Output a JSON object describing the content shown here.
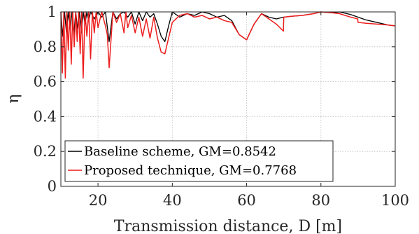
{
  "chart_data": {
    "type": "line",
    "title": "",
    "xlabel": "Transmission distance, D [m]",
    "ylabel": "η",
    "xlim": [
      10,
      100
    ],
    "ylim": [
      0,
      1
    ],
    "xticks": [
      20,
      40,
      60,
      80,
      100
    ],
    "yticks": [
      0,
      0.2,
      0.4,
      0.6,
      0.8,
      1
    ],
    "xtick_labels": [
      "20",
      "40",
      "60",
      "80",
      "100"
    ],
    "ytick_labels": [
      "0",
      "0.2",
      "0.4",
      "0.6",
      "0.8",
      "1"
    ],
    "grid": true,
    "legend_position": "bottom-left",
    "series": [
      {
        "name": "Baseline scheme, GM=0.8542",
        "color": "#000000",
        "x": [
          10,
          10.5,
          11,
          11.5,
          12,
          12.5,
          13,
          13.5,
          14,
          14.5,
          15,
          15.5,
          16,
          16.5,
          17,
          17.5,
          18,
          19,
          20,
          21,
          22,
          23,
          24,
          25,
          26,
          27,
          28,
          29,
          30,
          31,
          32,
          33,
          34,
          35,
          36,
          37,
          38,
          39,
          40,
          42,
          44,
          46,
          48,
          50,
          52,
          54,
          56,
          58,
          60,
          62,
          64,
          66,
          68,
          69.9,
          70,
          72,
          75,
          78,
          80,
          83,
          85,
          88,
          90,
          92,
          95,
          98,
          100
        ],
        "y": [
          1,
          0.86,
          1,
          0.88,
          1,
          0.9,
          1,
          0.87,
          1,
          0.9,
          1,
          0.88,
          1,
          0.93,
          1,
          0.95,
          1,
          0.96,
          1,
          0.97,
          1,
          0.83,
          1,
          0.96,
          0.99,
          1,
          0.97,
          1,
          0.93,
          1,
          0.95,
          1,
          0.97,
          0.99,
          0.93,
          0.86,
          0.83,
          0.92,
          1,
          0.97,
          0.99,
          0.98,
          1,
          0.99,
          0.97,
          0.98,
          0.95,
          0.87,
          0.84,
          0.93,
          0.99,
          0.97,
          0.96,
          0.97,
          0.97,
          0.975,
          0.98,
          0.99,
          1,
          0.995,
          1,
          0.985,
          0.97,
          0.955,
          0.94,
          0.925,
          0.92
        ]
      },
      {
        "name": "Proposed technique, GM=0.7768",
        "color": "#ee1c1c",
        "x": [
          10,
          10.4,
          10.8,
          11.2,
          11.6,
          12,
          12.4,
          12.8,
          13.2,
          13.6,
          14,
          14.4,
          14.8,
          15.2,
          15.6,
          16,
          16.5,
          17,
          17.5,
          18,
          18.5,
          19,
          19.5,
          20,
          21,
          22,
          22.5,
          23,
          23.5,
          24,
          25,
          26,
          27,
          27.5,
          28,
          29,
          30,
          31,
          32,
          33,
          34,
          35,
          36,
          37,
          38,
          39,
          40,
          42,
          44,
          46,
          48,
          50,
          52,
          54,
          56,
          58,
          60,
          62,
          64,
          66,
          68,
          69.9,
          70,
          72,
          75,
          78,
          80,
          83,
          85,
          88,
          89.9,
          90,
          92,
          95,
          98,
          100
        ],
        "y": [
          1,
          0.65,
          1,
          0.62,
          1,
          0.78,
          1,
          0.7,
          1,
          0.8,
          1,
          0.83,
          1,
          0.76,
          1,
          0.62,
          1,
          0.86,
          1,
          0.73,
          1,
          0.88,
          1,
          0.91,
          1,
          0.92,
          0.87,
          0.68,
          0.84,
          1,
          0.94,
          0.99,
          0.88,
          1,
          0.91,
          0.98,
          0.88,
          0.97,
          0.86,
          0.96,
          0.85,
          0.97,
          0.85,
          0.77,
          0.76,
          0.85,
          0.94,
          0.98,
          0.99,
          0.97,
          0.98,
          0.96,
          0.97,
          0.95,
          0.94,
          0.87,
          0.84,
          0.93,
          0.99,
          0.96,
          0.93,
          0.89,
          0.97,
          0.975,
          0.98,
          0.99,
          1,
          0.995,
          0.99,
          0.97,
          0.96,
          0.94,
          0.935,
          0.93,
          0.925,
          0.92
        ]
      }
    ]
  }
}
